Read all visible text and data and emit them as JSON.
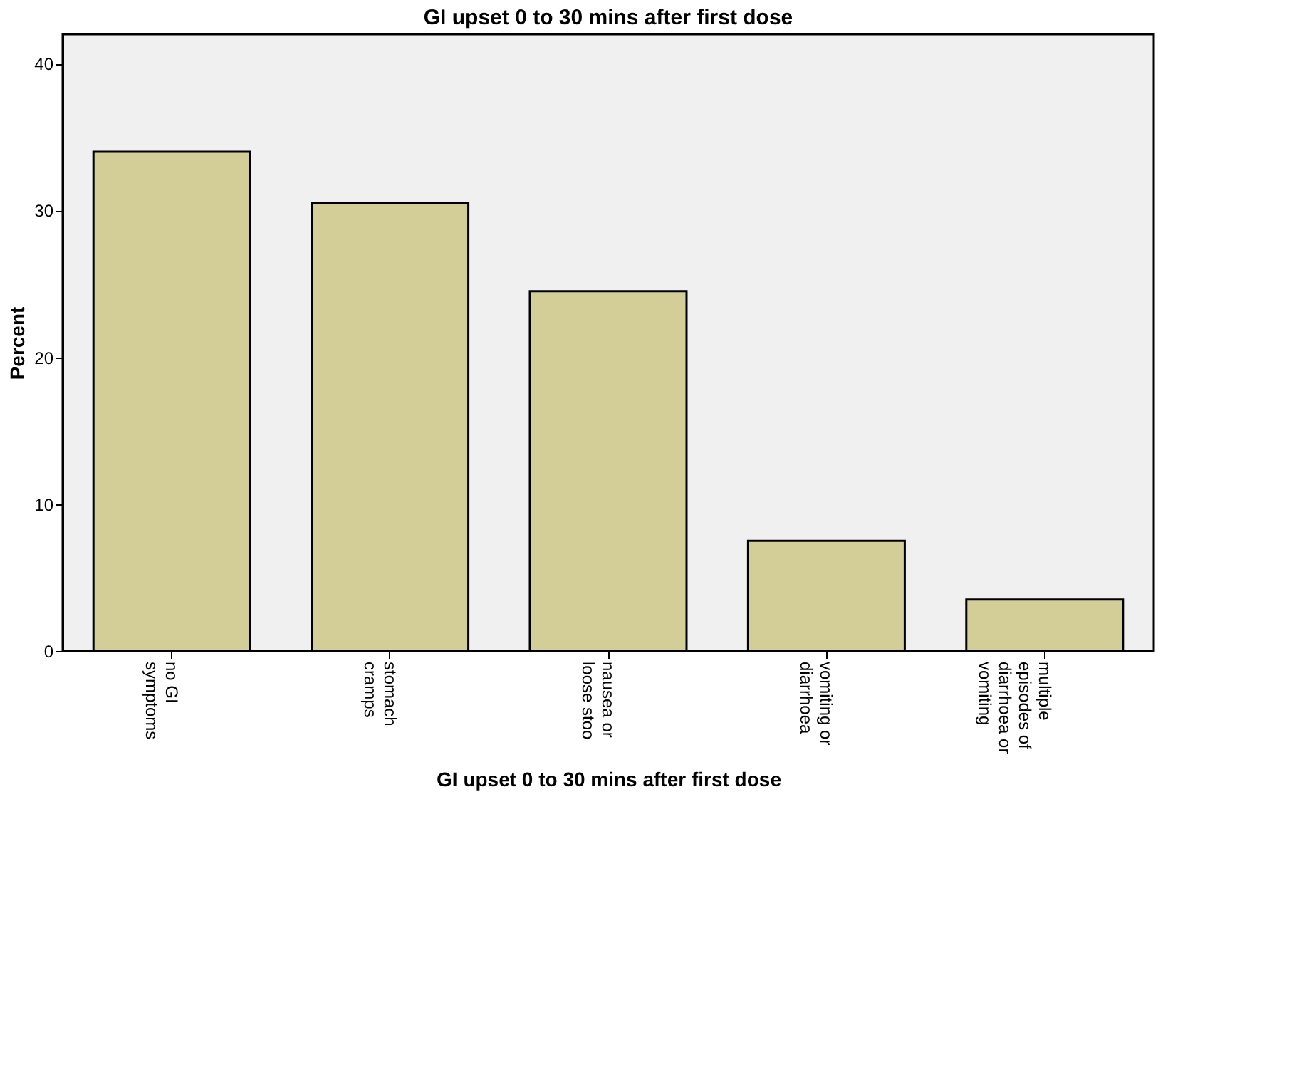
{
  "chart_data": {
    "type": "bar",
    "title": "GI upset 0 to 30 mins after first dose",
    "xlabel": "GI upset 0 to 30 mins after first dose",
    "ylabel": "Percent",
    "categories": [
      "no GI symptoms",
      "stomach cramps",
      "nausea or loose stoo",
      "vomiting or diarrhoea",
      "multiple episodes of diarrhoea or vomiting"
    ],
    "values": [
      34,
      30.5,
      24.5,
      7.5,
      3.5
    ],
    "color": "#d3ce97",
    "ylim": [
      0,
      42
    ],
    "yticks": [
      0,
      10,
      20,
      30,
      40
    ],
    "grid": false
  }
}
